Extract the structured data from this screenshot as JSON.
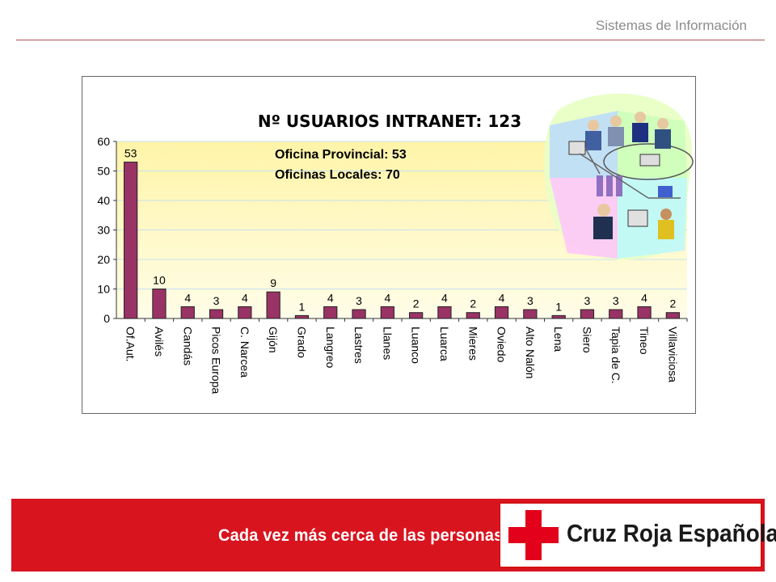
{
  "header": {
    "title": "Sistemas de Información"
  },
  "chart_data": {
    "type": "bar",
    "title": "Nº USUARIOS INTRANET: 123",
    "annotations": [
      "Oficina Provincial: 53",
      "Oficinas Locales: 70"
    ],
    "categories": [
      "Of.Aut.",
      "Avilés",
      "Candás",
      "Picos Europa",
      "C. Narcea",
      "Gijón",
      "Grado",
      "Langreo",
      "Lastres",
      "Llanes",
      "Luanco",
      "Luarca",
      "Mieres",
      "Oviedo",
      "Alto Nalón",
      "Lena",
      "Siero",
      "Tapia de C.",
      "Tineo",
      "Villaviciosa"
    ],
    "values": [
      53,
      10,
      4,
      3,
      4,
      9,
      1,
      4,
      3,
      4,
      2,
      4,
      2,
      4,
      3,
      1,
      3,
      3,
      4,
      2
    ],
    "yticks": [
      0,
      10,
      20,
      30,
      40,
      50,
      60
    ],
    "ylim": [
      0,
      60
    ],
    "grid": true,
    "bar_color": "#993366",
    "plot_gradient": [
      "#fff4a8",
      "#fffde8"
    ]
  },
  "footer": {
    "slogan": "Cada vez más cerca de las personas",
    "logo_text": "Cruz Roja Española",
    "brand_color": "#d8141f"
  },
  "clipart": {
    "icon": "networked-office-clipart-icon"
  }
}
